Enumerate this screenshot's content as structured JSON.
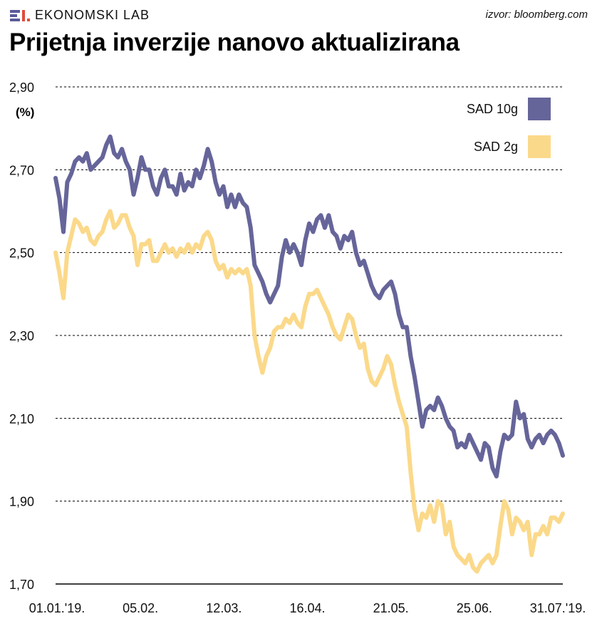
{
  "header": {
    "brand": "EKONOMSKI LAB",
    "source": "izvor: bloomberg.com",
    "title": "Prijetnja inverzije nanovo aktualizirana"
  },
  "colors": {
    "series_10y": "#66659a",
    "series_2y": "#fbd98a",
    "grid": "#000000"
  },
  "chart_data": {
    "type": "line",
    "title": "Prijetnja inverzije nanovo aktualizirana",
    "ylabel": "(%)",
    "xlabel": "",
    "ylim": [
      1.7,
      2.9
    ],
    "yticks": [
      1.7,
      1.9,
      2.1,
      2.3,
      2.5,
      2.7,
      2.9
    ],
    "ytick_labels": [
      "1,70",
      "1,90",
      "2,10",
      "2,30",
      "2,50",
      "2,70",
      "2,90"
    ],
    "xticks": [
      0,
      20,
      40,
      60,
      80,
      100,
      120
    ],
    "xtick_labels": [
      "01.01.'19.",
      "05.02.",
      "12.03.",
      "16.04.",
      "21.05.",
      "25.06.",
      "31.07.'19."
    ],
    "xlim": [
      0,
      121
    ],
    "legend_position": "top-right",
    "series": [
      {
        "name": "SAD 10g",
        "values": [
          2.68,
          2.63,
          2.55,
          2.67,
          2.69,
          2.72,
          2.73,
          2.72,
          2.74,
          2.7,
          2.71,
          2.72,
          2.73,
          2.76,
          2.78,
          2.74,
          2.73,
          2.75,
          2.72,
          2.7,
          2.64,
          2.68,
          2.73,
          2.7,
          2.7,
          2.66,
          2.64,
          2.68,
          2.7,
          2.66,
          2.66,
          2.64,
          2.69,
          2.65,
          2.67,
          2.66,
          2.7,
          2.68,
          2.71,
          2.75,
          2.72,
          2.67,
          2.64,
          2.66,
          2.61,
          2.64,
          2.61,
          2.64,
          2.62,
          2.61,
          2.56,
          2.47,
          2.45,
          2.43,
          2.4,
          2.38,
          2.4,
          2.42,
          2.49,
          2.53,
          2.5,
          2.52,
          2.5,
          2.47,
          2.53,
          2.57,
          2.55,
          2.58,
          2.59,
          2.56,
          2.59,
          2.55,
          2.54,
          2.51,
          2.54,
          2.53,
          2.55,
          2.5,
          2.47,
          2.48,
          2.45,
          2.42,
          2.4,
          2.39,
          2.41,
          2.42,
          2.43,
          2.4,
          2.35,
          2.32,
          2.32,
          2.25,
          2.2,
          2.14,
          2.08,
          2.12,
          2.13,
          2.12,
          2.15,
          2.13,
          2.1,
          2.08,
          2.07,
          2.03,
          2.04,
          2.03,
          2.06,
          2.04,
          2.02,
          2.0,
          2.04,
          2.03,
          1.98,
          1.96,
          2.02,
          2.06,
          2.05,
          2.06,
          2.14,
          2.1,
          2.11,
          2.05,
          2.03,
          2.05,
          2.06,
          2.04,
          2.06,
          2.07,
          2.06,
          2.04,
          2.01
        ]
      },
      {
        "name": "SAD 2g",
        "values": [
          2.5,
          2.45,
          2.39,
          2.5,
          2.54,
          2.58,
          2.57,
          2.55,
          2.56,
          2.53,
          2.52,
          2.54,
          2.55,
          2.58,
          2.6,
          2.56,
          2.57,
          2.59,
          2.59,
          2.56,
          2.54,
          2.47,
          2.52,
          2.52,
          2.53,
          2.48,
          2.48,
          2.5,
          2.52,
          2.5,
          2.51,
          2.49,
          2.51,
          2.5,
          2.52,
          2.5,
          2.52,
          2.51,
          2.54,
          2.55,
          2.53,
          2.48,
          2.46,
          2.47,
          2.44,
          2.46,
          2.45,
          2.46,
          2.45,
          2.46,
          2.42,
          2.3,
          2.25,
          2.21,
          2.25,
          2.27,
          2.31,
          2.32,
          2.32,
          2.34,
          2.33,
          2.35,
          2.33,
          2.32,
          2.37,
          2.4,
          2.4,
          2.41,
          2.39,
          2.37,
          2.35,
          2.32,
          2.3,
          2.29,
          2.32,
          2.35,
          2.34,
          2.3,
          2.27,
          2.28,
          2.22,
          2.19,
          2.18,
          2.2,
          2.22,
          2.25,
          2.23,
          2.18,
          2.14,
          2.11,
          2.08,
          1.97,
          1.88,
          1.83,
          1.87,
          1.86,
          1.89,
          1.85,
          1.9,
          1.89,
          1.82,
          1.85,
          1.79,
          1.77,
          1.76,
          1.75,
          1.77,
          1.74,
          1.73,
          1.75,
          1.76,
          1.77,
          1.75,
          1.77,
          1.84,
          1.9,
          1.88,
          1.82,
          1.86,
          1.85,
          1.83,
          1.85,
          1.77,
          1.82,
          1.82,
          1.84,
          1.82,
          1.86,
          1.86,
          1.85,
          1.87
        ]
      }
    ]
  }
}
